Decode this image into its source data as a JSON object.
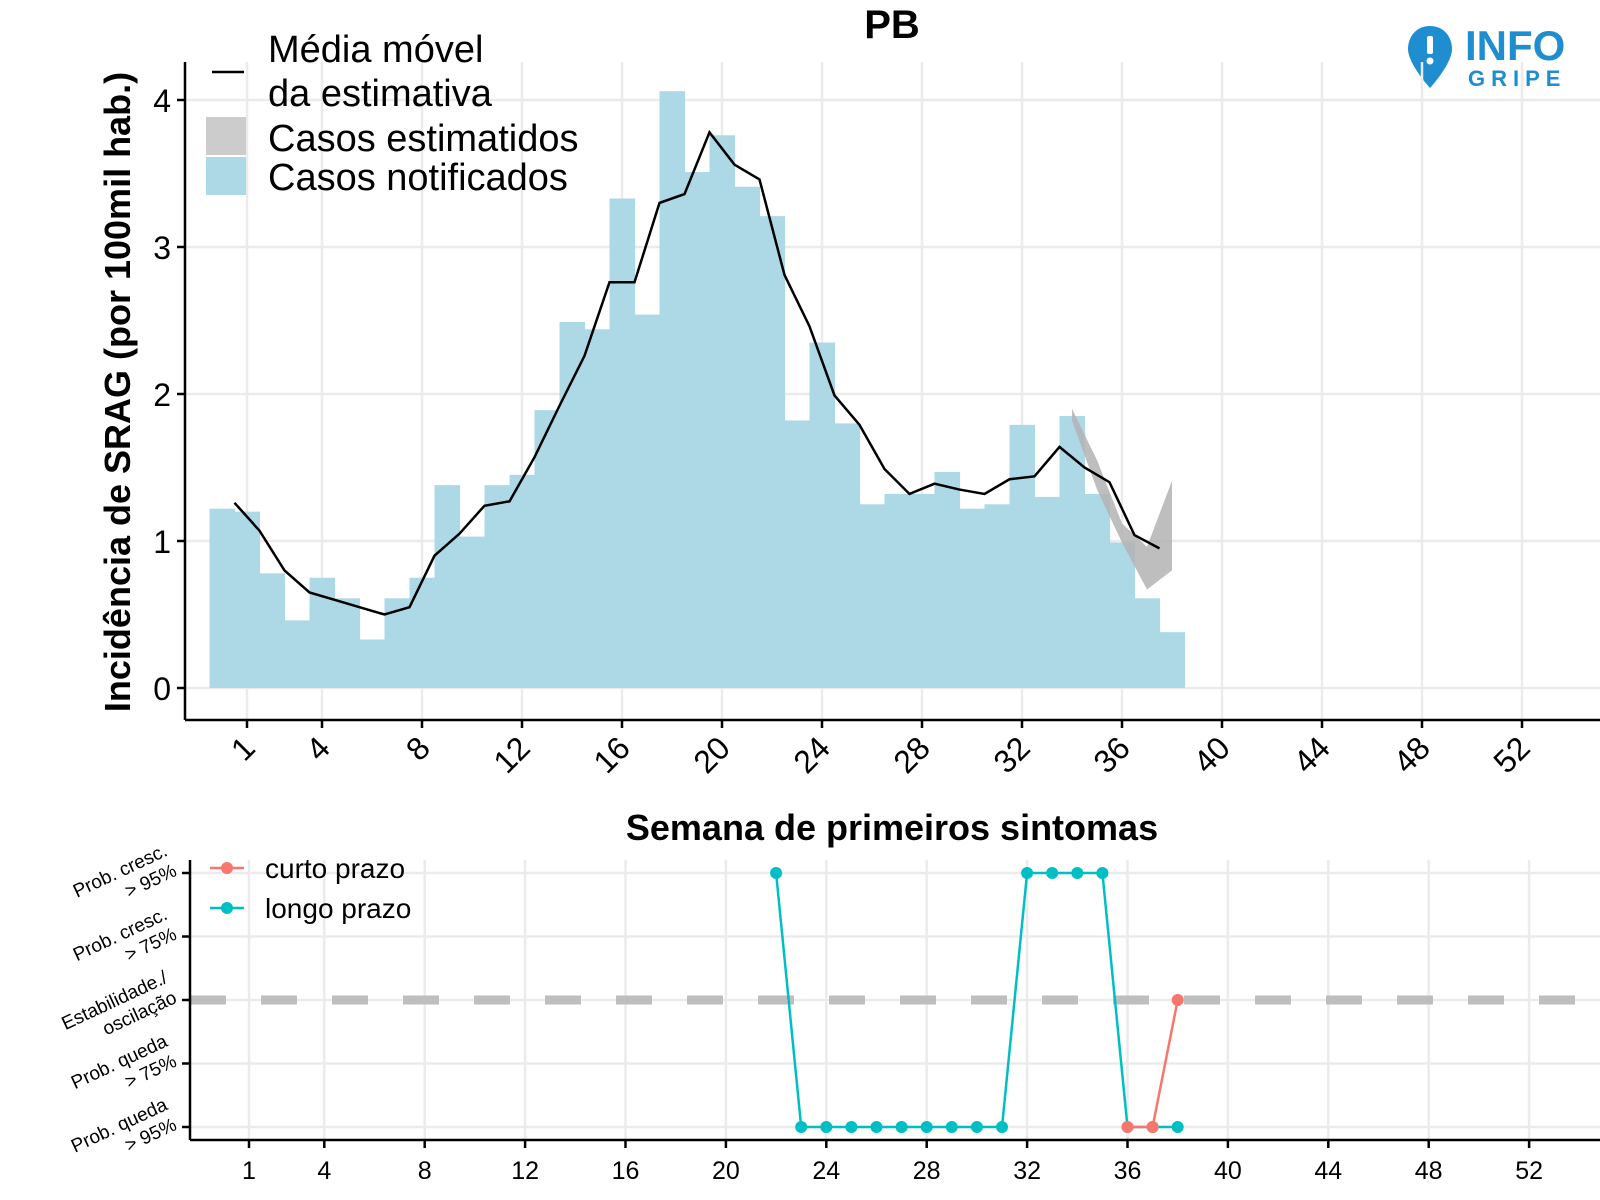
{
  "logo": {
    "line1": "INFO",
    "line2": "GRIPE",
    "color": "#1e8ed0"
  },
  "chart_data": [
    {
      "type": "bar",
      "title": "PB",
      "xlabel": "Semana de primeiros sintomas",
      "ylabel": "Incidência de SRAG (por 100mil hab.)",
      "xlim": [
        -0.5,
        53.5
      ],
      "ylim": [
        -0.2,
        4.3
      ],
      "x_ticks": [
        1,
        4,
        8,
        12,
        16,
        20,
        24,
        28,
        32,
        36,
        40,
        44,
        48,
        52
      ],
      "y_ticks": [
        0,
        1,
        2,
        3,
        4
      ],
      "grid": true,
      "legend_position": "top-left",
      "legend": {
        "moving_avg": "Média móvel\nda estimativa",
        "estimated": "Casos estimatidos",
        "notified": "Casos notificados"
      },
      "colors": {
        "notified": "#add8e6",
        "estimated": "#b3b3b3",
        "moving_avg": "#000000"
      },
      "notified": {
        "weeks": [
          0,
          1,
          2,
          3,
          4,
          5,
          6,
          7,
          8,
          9,
          10,
          11,
          12,
          13,
          14,
          15,
          16,
          17,
          18,
          19,
          20,
          21,
          22,
          23,
          24,
          25,
          26,
          27,
          28,
          29,
          30,
          31,
          32,
          33,
          34,
          35,
          36,
          37,
          38
        ],
        "values": [
          1.22,
          1.2,
          0.78,
          0.46,
          0.75,
          0.61,
          0.33,
          0.61,
          0.75,
          1.38,
          1.03,
          1.38,
          1.45,
          1.89,
          2.49,
          2.44,
          3.33,
          2.54,
          4.06,
          3.51,
          3.76,
          3.41,
          3.21,
          1.82,
          2.35,
          1.8,
          1.25,
          1.32,
          1.32,
          1.47,
          1.22,
          1.25,
          1.79,
          1.3,
          1.85,
          1.32,
          0.99,
          0.61,
          0.38
        ]
      },
      "moving_average": {
        "weeks": [
          0.5,
          1.5,
          2.5,
          3.5,
          4.5,
          5.5,
          6.5,
          7.5,
          8.5,
          9.5,
          10.5,
          11.5,
          12.5,
          13.5,
          14.5,
          15.5,
          16.5,
          17.5,
          18.5,
          19.5,
          20.5,
          21.5,
          22.5,
          23.5,
          24.5,
          25.5,
          26.5,
          27.5,
          28.5,
          29.5,
          30.5,
          31.5,
          32.5,
          33.5,
          34.5,
          35.5,
          36.5,
          37.5
        ],
        "values": [
          1.26,
          1.07,
          0.8,
          0.65,
          0.6,
          0.55,
          0.5,
          0.55,
          0.9,
          1.05,
          1.24,
          1.27,
          1.57,
          1.92,
          2.26,
          2.76,
          2.76,
          3.3,
          3.36,
          3.78,
          3.56,
          3.46,
          2.81,
          2.46,
          1.99,
          1.79,
          1.49,
          1.32,
          1.39,
          1.35,
          1.32,
          1.42,
          1.44,
          1.64,
          1.5,
          1.4,
          1.04,
          0.95
        ]
      },
      "estimated_band": {
        "weeks": [
          34,
          35,
          36,
          37,
          38
        ],
        "lower": [
          1.82,
          1.35,
          0.99,
          0.67,
          0.8
        ],
        "upper": [
          1.9,
          1.55,
          1.12,
          0.96,
          1.41
        ]
      }
    },
    {
      "type": "line",
      "xlabel": "",
      "ylabel": "",
      "x_ticks": [
        1,
        4,
        8,
        12,
        16,
        20,
        24,
        28,
        32,
        36,
        40,
        44,
        48,
        52
      ],
      "categories": [
        "Prob. queda\n> 95%",
        "Prob. queda\n> 75%",
        "Estabilidade./\noscilação",
        "Prob. cresc.\n> 75%",
        "Prob. cresc.\n> 95%"
      ],
      "y_levels": [
        -2,
        -1,
        0,
        1,
        2
      ],
      "reference_line": 0,
      "legend_position": "top-left",
      "series": [
        {
          "name": "curto prazo",
          "color": "#f8766d",
          "x": [
            36,
            37,
            38
          ],
          "y": [
            -2,
            -2,
            0
          ]
        },
        {
          "name": "longo prazo",
          "color": "#00bfc4",
          "x": [
            22,
            23,
            24,
            25,
            26,
            27,
            28,
            29,
            30,
            31,
            32,
            33,
            34,
            35,
            36,
            37,
            38
          ],
          "y": [
            2,
            -2,
            -2,
            -2,
            -2,
            -2,
            -2,
            -2,
            -2,
            -2,
            2,
            2,
            2,
            2,
            -2,
            -2,
            -2
          ]
        }
      ]
    }
  ]
}
